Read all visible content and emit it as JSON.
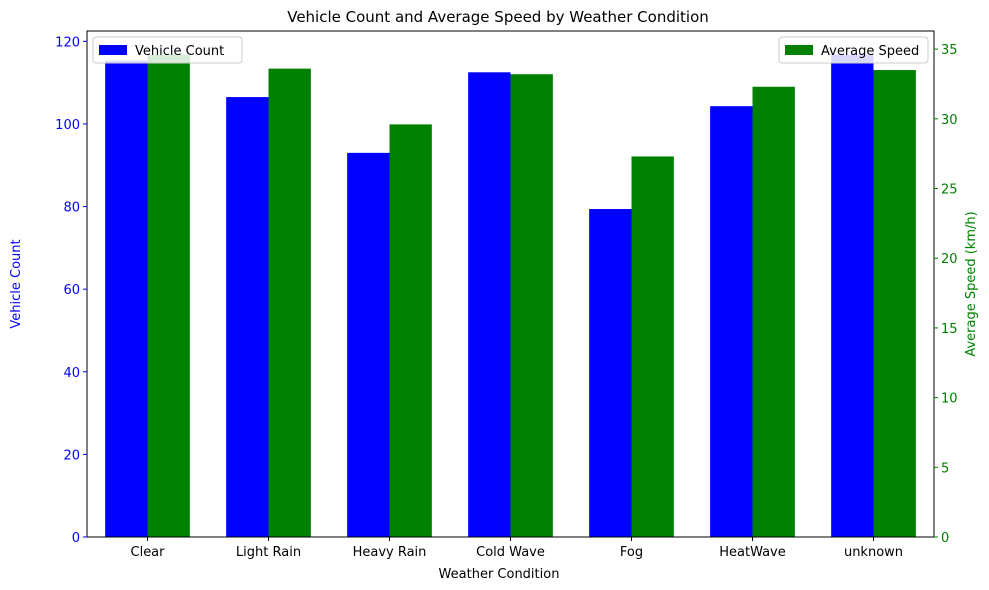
{
  "chart_data": {
    "type": "bar",
    "title": "Vehicle Count and Average Speed by Weather Condition",
    "xlabel": "Weather Condition",
    "categories": [
      "Clear",
      "Light Rain",
      "Heavy Rain",
      "Cold Wave",
      "Fog",
      "HeatWave",
      "unknown"
    ],
    "left_axis": {
      "label": "Vehicle Count",
      "ylim": [
        0,
        122.5
      ],
      "ticks": [
        0,
        20,
        40,
        60,
        80,
        100,
        120
      ],
      "color": "#0000ff"
    },
    "right_axis": {
      "label": "Average Speed (km/h)",
      "ylim": [
        0,
        36.3
      ],
      "ticks": [
        0,
        5,
        10,
        15,
        20,
        25,
        30,
        35
      ],
      "color": "#008000"
    },
    "series": [
      {
        "name": "Vehicle Count",
        "axis": "left",
        "color": "#0000ff",
        "values": [
          115.3,
          106.5,
          93.0,
          112.5,
          79.4,
          104.3,
          116.8
        ]
      },
      {
        "name": "Average Speed",
        "axis": "right",
        "color": "#008000",
        "values": [
          34.6,
          33.6,
          29.6,
          33.2,
          27.3,
          32.3,
          33.5
        ]
      }
    ],
    "legends": [
      {
        "series": "Vehicle Count",
        "placement": "upper left"
      },
      {
        "series": "Average Speed",
        "placement": "upper right"
      }
    ],
    "grid": false
  }
}
